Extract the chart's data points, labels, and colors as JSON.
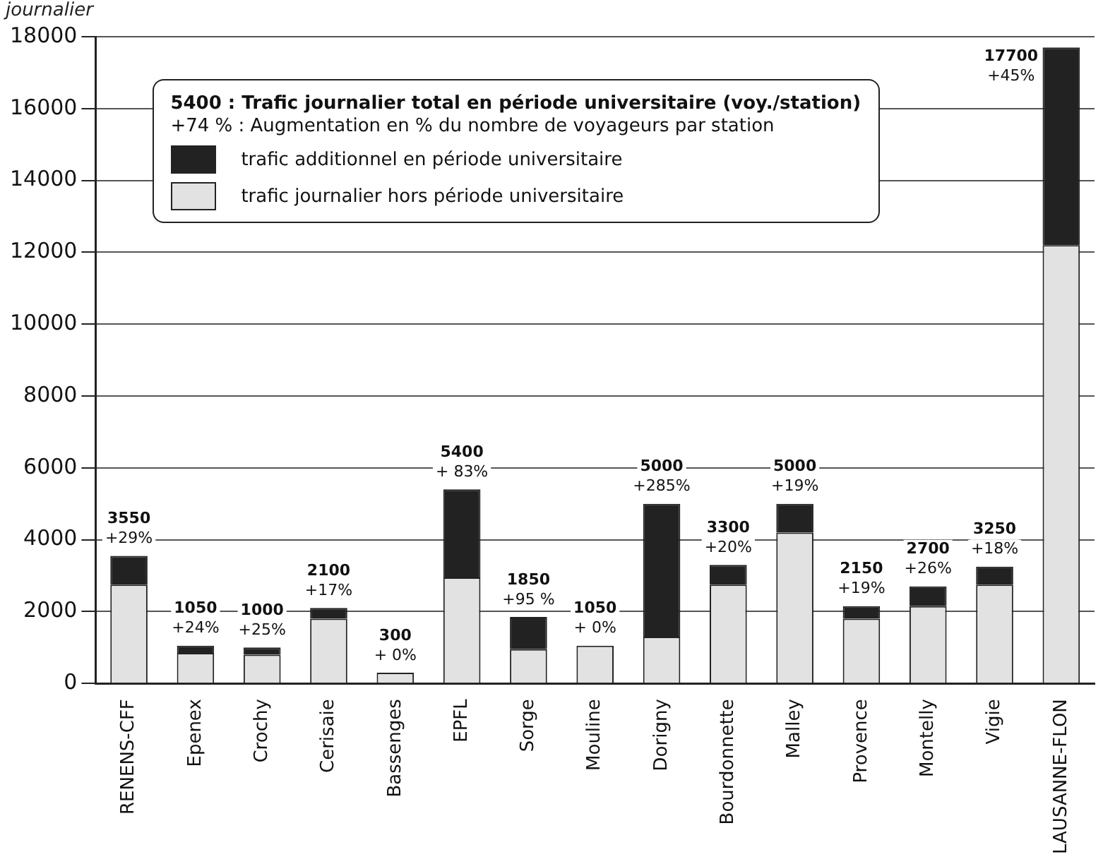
{
  "chart_data": {
    "type": "bar",
    "stacked": true,
    "ylabel": "journalier",
    "categories": [
      "RENENS-CFF",
      "Epenex",
      "Crochy",
      "Cerisaie",
      "Bassenges",
      "EPFL",
      "Sorge",
      "Mouline",
      "Dorigny",
      "Bourdonnette",
      "Malley",
      "Provence",
      "Montelly",
      "Vigie",
      "LAUSANNE-FLON"
    ],
    "series": [
      {
        "name": "trafic journalier hors période universitaire",
        "color": "#e2e2e2",
        "values": [
          2750,
          850,
          800,
          1800,
          300,
          2950,
          950,
          1050,
          1300,
          2750,
          4200,
          1800,
          2150,
          2750,
          12200
        ]
      },
      {
        "name": "trafic additionnel en période universitaire",
        "color": "#222222",
        "values": [
          800,
          200,
          200,
          300,
          0,
          2450,
          900,
          0,
          3700,
          550,
          800,
          350,
          550,
          500,
          5500
        ]
      }
    ],
    "totals": [
      "3550",
      "1050",
      "1000",
      "2100",
      "300",
      "5400",
      "1850",
      "1050",
      "5000",
      "3300",
      "5000",
      "2150",
      "2700",
      "3250",
      "17700"
    ],
    "annotations": [
      "5400 : Trafic journalier total en période universitaire (voy./station)",
      "+74 % : Augmentation en % du nombre de voyageurs par station",
      {
        "text": "+29%",
        "x": "RENENS-CFF",
        "y": 3550
      },
      {
        "text": "+24%",
        "x": "Epenex",
        "y": 1050
      },
      {
        "text": "+25%",
        "x": "Crochy",
        "y": 1000
      },
      {
        "text": "+17%",
        "x": "Cerisaie",
        "y": 2100
      },
      {
        "text": "+ 0%",
        "x": "Bassenges",
        "y": 300
      },
      {
        "text": "+ 83%",
        "x": "EPFL",
        "y": 5400
      },
      {
        "text": "+95 %",
        "x": "Sorge",
        "y": 1850
      },
      {
        "text": "+ 0%",
        "x": "Mouline",
        "y": 1050
      },
      {
        "text": "+285%",
        "x": "Dorigny",
        "y": 5000
      },
      {
        "text": "+20%",
        "x": "Bourdonnette",
        "y": 3300
      },
      {
        "text": "+19%",
        "x": "Malley",
        "y": 5000
      },
      {
        "text": "+19%",
        "x": "Provence",
        "y": 2150
      },
      {
        "text": "+26%",
        "x": "Montelly",
        "y": 2700
      },
      {
        "text": "+18%",
        "x": "Vigie",
        "y": 3250
      },
      {
        "text": "+45%",
        "x": "LAUSANNE-FLON",
        "y": 17700
      }
    ],
    "ylim": [
      0,
      18000
    ],
    "yticks": [
      0,
      2000,
      4000,
      6000,
      8000,
      10000,
      12000,
      14000,
      16000,
      18000
    ],
    "grid": "y",
    "legend": "top"
  }
}
